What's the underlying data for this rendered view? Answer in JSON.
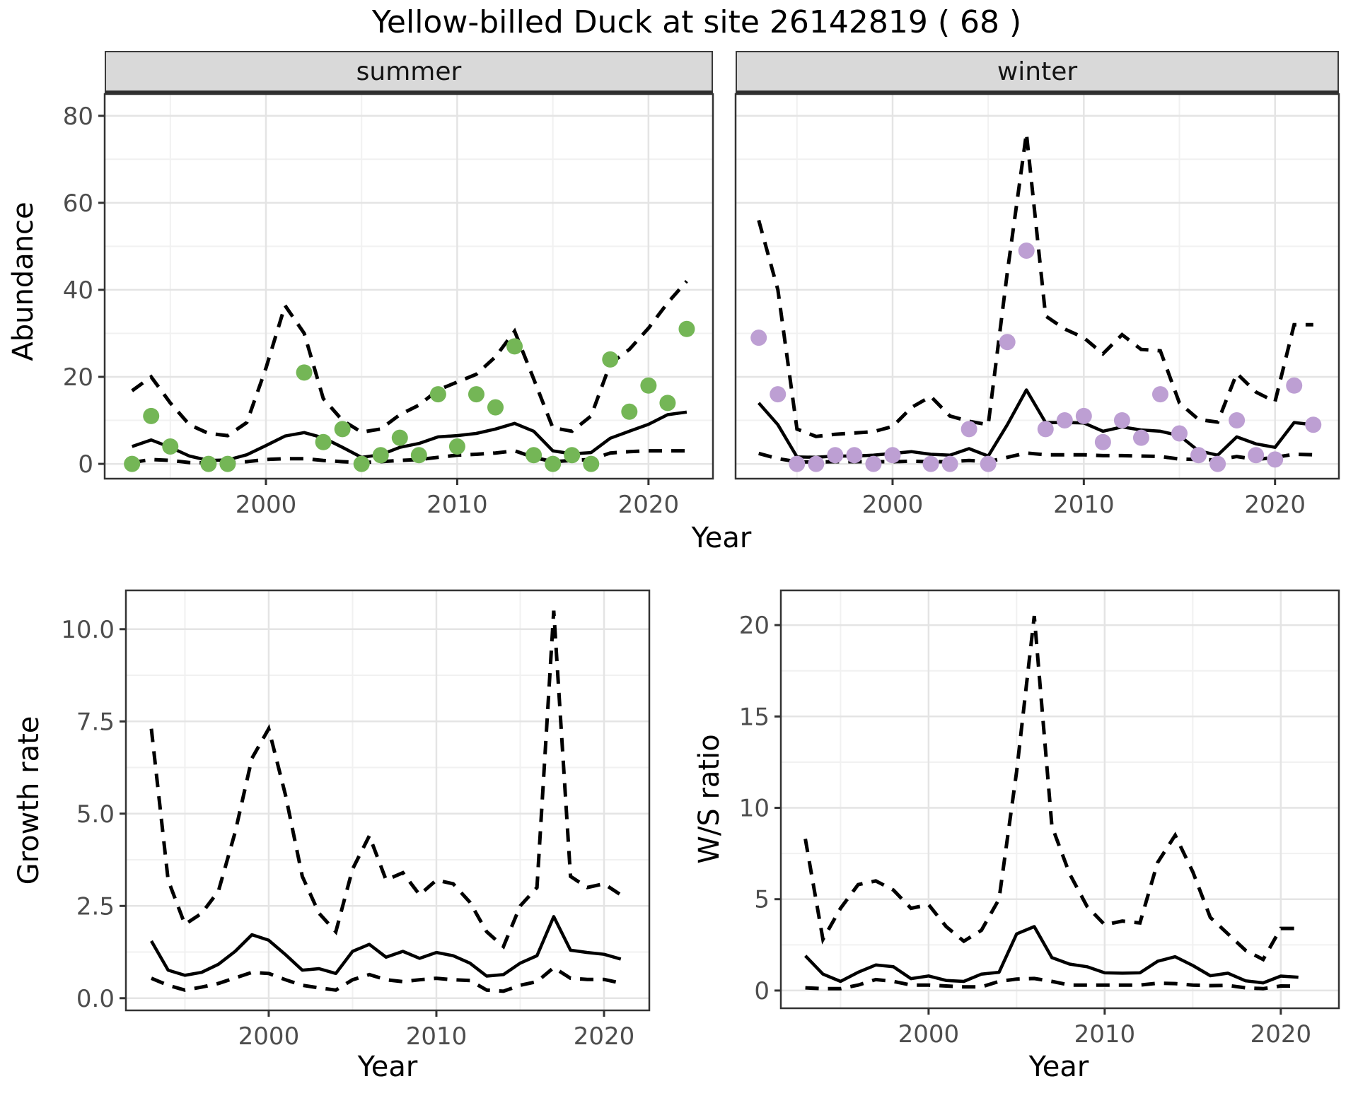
{
  "title": "Yellow-billed Duck at site 26142819 ( 68 )",
  "colors": {
    "summer_points": "#74b656",
    "winter_points": "#bd9fd3",
    "line": "#000000",
    "grid_major": "#e4e4e4",
    "grid_minor": "#f1f1f1",
    "panel_border": "#333333",
    "strip_bg": "#d9d9d9",
    "tick_text": "#4d4d4d"
  },
  "chart_data": [
    {
      "id": "abundance_summer",
      "type": "line",
      "facet_label": "summer",
      "x": [
        1993,
        1994,
        1995,
        1996,
        1997,
        1998,
        1999,
        2000,
        2001,
        2002,
        2003,
        2004,
        2005,
        2006,
        2007,
        2008,
        2009,
        2010,
        2011,
        2012,
        2013,
        2014,
        2015,
        2016,
        2017,
        2018,
        2019,
        2020,
        2021,
        2022
      ],
      "fit": [
        4,
        5.5,
        3.8,
        1.8,
        0.8,
        0.9,
        2.1,
        4.2,
        6.4,
        7.2,
        6,
        3.8,
        1.5,
        2.1,
        3.8,
        4.7,
        6.2,
        6.5,
        7,
        8,
        9.3,
        7.5,
        3,
        2.3,
        2.6,
        5.9,
        7.5,
        9.1,
        11.3,
        11.9
      ],
      "upper_ci": [
        16.8,
        20,
        14,
        9,
        7,
        6.5,
        9.5,
        22,
        36.4,
        30,
        15,
        10,
        7.3,
        8,
        11.3,
        13.5,
        17,
        18.8,
        20.6,
        24.6,
        30.5,
        19.5,
        8.3,
        7.5,
        11,
        23,
        26.3,
        31.2,
        37,
        42
      ],
      "lower_ci": [
        0.3,
        1,
        0.8,
        0.3,
        0.2,
        0.2,
        0.5,
        1,
        1.2,
        1.2,
        0.8,
        0.5,
        0.3,
        0.5,
        0.8,
        1,
        1.5,
        2,
        2.2,
        2.5,
        3,
        1.5,
        0.5,
        0.8,
        1,
        2.5,
        2.8,
        3,
        3,
        3
      ],
      "points": {
        "x": [
          1993,
          1994,
          1995,
          1997,
          1998,
          2002,
          2003,
          2004,
          2005,
          2006,
          2007,
          2008,
          2009,
          2010,
          2011,
          2012,
          2013,
          2014,
          2015,
          2016,
          2017,
          2018,
          2019,
          2020,
          2021,
          2022
        ],
        "y": [
          0,
          11,
          4,
          0,
          0,
          21,
          5,
          8,
          0,
          2,
          6,
          2,
          16,
          4,
          16,
          13,
          27,
          2,
          0,
          2,
          0,
          24,
          12,
          18,
          14,
          31
        ]
      },
      "point_color": "#74b656",
      "axes": {
        "xlabel": "Year",
        "ylabel": "Abundance",
        "xticks": [
          2000,
          2010,
          2020
        ],
        "xtick_labels": [
          "2000",
          "2010",
          "2020"
        ],
        "xminor": [
          1995,
          2005,
          2015
        ],
        "yticks": [
          0,
          20,
          40,
          60,
          80
        ],
        "ytick_labels": [
          "0",
          "20",
          "40",
          "60",
          "80"
        ],
        "yminor": [
          10,
          30,
          50,
          70
        ],
        "xlim": [
          1991.57,
          2023.37
        ],
        "ylim": [
          -3.4,
          85.0
        ],
        "grid": true,
        "show_ytick_labels": true
      }
    },
    {
      "id": "abundance_winter",
      "type": "line",
      "facet_label": "winter",
      "x": [
        1993,
        1994,
        1995,
        1996,
        1997,
        1998,
        1999,
        2000,
        2001,
        2002,
        2003,
        2004,
        2005,
        2006,
        2007,
        2008,
        2009,
        2010,
        2011,
        2012,
        2013,
        2014,
        2015,
        2016,
        2017,
        2018,
        2019,
        2020,
        2021,
        2022
      ],
      "fit": [
        14,
        9,
        1.6,
        1.5,
        1.8,
        1.8,
        2,
        2.4,
        2.8,
        2.2,
        2,
        3.5,
        1.8,
        9,
        17,
        9.5,
        9.5,
        9.4,
        7.5,
        8.5,
        7.8,
        7.5,
        6.5,
        3,
        2,
        6.2,
        4.6,
        3.8,
        9.5,
        9
      ],
      "upper_ci": [
        56,
        40,
        8,
        6.3,
        6.8,
        7.1,
        7.4,
        8.6,
        13,
        15.5,
        11,
        9.8,
        9,
        44,
        76,
        34,
        31,
        29,
        25.3,
        29.7,
        26.3,
        26,
        14,
        10.2,
        9.6,
        20.8,
        16.5,
        14.3,
        32,
        32
      ],
      "lower_ci": [
        2.4,
        1.2,
        0.5,
        0.4,
        0.5,
        0.5,
        0.5,
        0.5,
        0.6,
        0.5,
        0.5,
        0.8,
        0.5,
        1.5,
        2.5,
        2.1,
        2.1,
        2.1,
        1.9,
        1.9,
        1.8,
        1.7,
        1.1,
        1,
        0.9,
        1.7,
        1,
        1.5,
        2.2,
        2.1
      ],
      "points": {
        "x": [
          1993,
          1994,
          1995,
          1996,
          1997,
          1998,
          1999,
          2000,
          2002,
          2003,
          2004,
          2005,
          2006,
          2007,
          2008,
          2009,
          2010,
          2011,
          2012,
          2013,
          2014,
          2015,
          2016,
          2017,
          2018,
          2019,
          2020,
          2021,
          2022
        ],
        "y": [
          29,
          16,
          0,
          0,
          2,
          2,
          0,
          2,
          0,
          0,
          8,
          0,
          28,
          49,
          8,
          10,
          11,
          5,
          10,
          6,
          16,
          7,
          2,
          0,
          10,
          2,
          1,
          18,
          9
        ]
      },
      "point_color": "#bd9fd3",
      "axes": {
        "xlabel": "Year",
        "ylabel": "",
        "xticks": [
          2000,
          2010,
          2020
        ],
        "xtick_labels": [
          "2000",
          "2010",
          "2020"
        ],
        "xminor": [
          1995,
          2005,
          2015
        ],
        "yticks": [
          0,
          20,
          40,
          60,
          80
        ],
        "ytick_labels": [
          "0",
          "20",
          "40",
          "60",
          "80"
        ],
        "yminor": [
          10,
          30,
          50,
          70
        ],
        "xlim": [
          1991.79,
          2023.34
        ],
        "ylim": [
          -3.4,
          85.0
        ],
        "grid": true,
        "show_ytick_labels": false
      }
    },
    {
      "id": "growth_rate",
      "type": "line",
      "facet_label": "",
      "x": [
        1993,
        1994,
        1995,
        1996,
        1997,
        1998,
        1999,
        2000,
        2001,
        2002,
        2003,
        2004,
        2005,
        2006,
        2007,
        2008,
        2009,
        2010,
        2011,
        2012,
        2013,
        2014,
        2015,
        2016,
        2017,
        2018,
        2019,
        2020,
        2021
      ],
      "fit": [
        1.55,
        0.76,
        0.62,
        0.7,
        0.92,
        1.27,
        1.72,
        1.57,
        1.18,
        0.76,
        0.8,
        0.67,
        1.27,
        1.46,
        1.11,
        1.27,
        1.08,
        1.24,
        1.15,
        0.95,
        0.6,
        0.64,
        0.95,
        1.15,
        2.21,
        1.3,
        1.24,
        1.19,
        1.06
      ],
      "upper_ci": [
        7.3,
        3.2,
        2,
        2.3,
        2.9,
        4.5,
        6.5,
        7.3,
        5.5,
        3.3,
        2.3,
        1.8,
        3.5,
        4.4,
        3.2,
        3.4,
        2.8,
        3.2,
        3.1,
        2.6,
        1.8,
        1.4,
        2.5,
        3,
        10.5,
        3.3,
        3,
        3.1,
        2.8
      ],
      "lower_ci": [
        0.54,
        0.35,
        0.22,
        0.3,
        0.4,
        0.55,
        0.7,
        0.67,
        0.5,
        0.35,
        0.28,
        0.22,
        0.5,
        0.64,
        0.5,
        0.45,
        0.5,
        0.54,
        0.5,
        0.48,
        0.22,
        0.19,
        0.35,
        0.45,
        0.83,
        0.54,
        0.51,
        0.51,
        0.41
      ],
      "points": null,
      "point_color": "",
      "axes": {
        "xlabel": "Year",
        "ylabel": "Growth rate",
        "xticks": [
          2000,
          2010,
          2020
        ],
        "xtick_labels": [
          "2000",
          "2010",
          "2020"
        ],
        "xminor": [
          1995,
          2005,
          2015
        ],
        "yticks": [
          0,
          2.5,
          5,
          7.5,
          10
        ],
        "ytick_labels": [
          "0.0",
          "2.5",
          "5.0",
          "7.5",
          "10.0"
        ],
        "yminor": [
          1.25,
          3.75,
          6.25,
          8.75
        ],
        "xlim": [
          1991.48,
          2022.7
        ],
        "ylim": [
          -0.33,
          11.05
        ],
        "grid": true,
        "show_ytick_labels": true
      }
    },
    {
      "id": "ws_ratio",
      "type": "line",
      "facet_label": "",
      "x": [
        1993,
        1994,
        1995,
        1996,
        1997,
        1998,
        1999,
        2000,
        2001,
        2002,
        2003,
        2004,
        2005,
        2006,
        2007,
        2008,
        2009,
        2010,
        2011,
        2012,
        2013,
        2014,
        2015,
        2016,
        2017,
        2018,
        2019,
        2020,
        2021
      ],
      "fit": [
        1.9,
        0.9,
        0.5,
        1,
        1.4,
        1.3,
        0.65,
        0.8,
        0.55,
        0.5,
        0.9,
        1,
        3.1,
        3.5,
        1.8,
        1.45,
        1.3,
        0.97,
        0.95,
        0.97,
        1.6,
        1.85,
        1.37,
        0.81,
        0.95,
        0.53,
        0.42,
        0.79,
        0.73
      ],
      "upper_ci": [
        8.3,
        2.8,
        4.5,
        5.8,
        6,
        5.5,
        4.5,
        4.7,
        3.5,
        2.7,
        3.3,
        5,
        12,
        20.5,
        9,
        6.4,
        4.6,
        3.6,
        3.8,
        3.7,
        7,
        8.5,
        6.5,
        4,
        3.1,
        2.2,
        1.7,
        3.4,
        3.4
      ],
      "lower_ci": [
        0.15,
        0.1,
        0.1,
        0.3,
        0.6,
        0.5,
        0.3,
        0.3,
        0.25,
        0.2,
        0.2,
        0.5,
        0.63,
        0.66,
        0.5,
        0.3,
        0.3,
        0.3,
        0.3,
        0.3,
        0.4,
        0.38,
        0.3,
        0.27,
        0.28,
        0.15,
        0.1,
        0.25,
        0.24
      ],
      "points": null,
      "point_color": "",
      "axes": {
        "xlabel": "Year",
        "ylabel": "W/S ratio",
        "xticks": [
          2000,
          2010,
          2020
        ],
        "xtick_labels": [
          "2000",
          "2010",
          "2020"
        ],
        "xminor": [
          1995,
          2005,
          2015
        ],
        "yticks": [
          0,
          5,
          10,
          15,
          20
        ],
        "ytick_labels": [
          "0",
          "5",
          "10",
          "15",
          "20"
        ],
        "yminor": [
          2.5,
          7.5,
          12.5,
          17.5
        ],
        "xlim": [
          1991.61,
          2023.3
        ],
        "ylim": [
          -0.97,
          21.9
        ],
        "grid": true,
        "show_ytick_labels": true
      }
    }
  ]
}
